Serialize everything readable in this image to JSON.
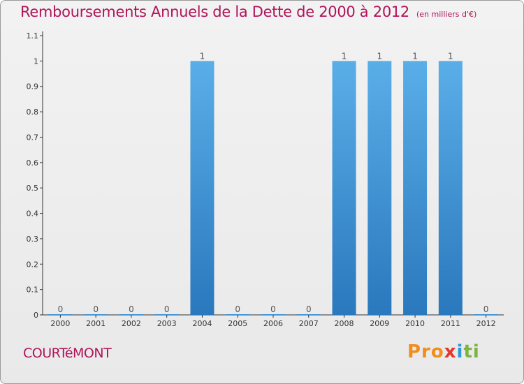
{
  "header": {
    "title": "Remboursements Annuels de la Dette de 2000 à 2012",
    "subtitle": "(en milliers d'€)"
  },
  "footer": {
    "commune": "COURTéMONT",
    "logo": [
      "Pro",
      "x",
      "i",
      "ti"
    ]
  },
  "colors": {
    "title": "#b0145a",
    "bar_top": "#5aaee8",
    "bar_bottom": "#2a78bd",
    "axis": "#333333",
    "grid": "#cccccc"
  },
  "chart_data": {
    "type": "bar",
    "title": "Remboursements Annuels de la Dette de 2000 à 2012",
    "subtitle": "(en milliers d'€)",
    "xlabel": "",
    "ylabel": "",
    "categories": [
      "2000",
      "2001",
      "2002",
      "2003",
      "2004",
      "2005",
      "2006",
      "2007",
      "2008",
      "2009",
      "2010",
      "2011",
      "2012"
    ],
    "values": [
      0,
      0,
      0,
      0,
      1,
      0,
      0,
      0,
      1,
      1,
      1,
      1,
      0
    ],
    "data_labels": [
      "0",
      "0",
      "0",
      "0",
      "1",
      "0",
      "0",
      "0",
      "1",
      "1",
      "1",
      "1",
      "0"
    ],
    "ylim": [
      0,
      1.1
    ],
    "yticks": [
      0,
      0.1,
      0.2,
      0.3,
      0.4,
      0.5,
      0.6,
      0.7,
      0.8,
      0.9,
      1,
      1.1
    ],
    "ytick_labels": [
      "0",
      "0.1",
      "0.2",
      "0.3",
      "0.4",
      "0.5",
      "0.6",
      "0.7",
      "0.8",
      "0.9",
      "1",
      "1.1"
    ],
    "grid": false,
    "legend": "none"
  }
}
